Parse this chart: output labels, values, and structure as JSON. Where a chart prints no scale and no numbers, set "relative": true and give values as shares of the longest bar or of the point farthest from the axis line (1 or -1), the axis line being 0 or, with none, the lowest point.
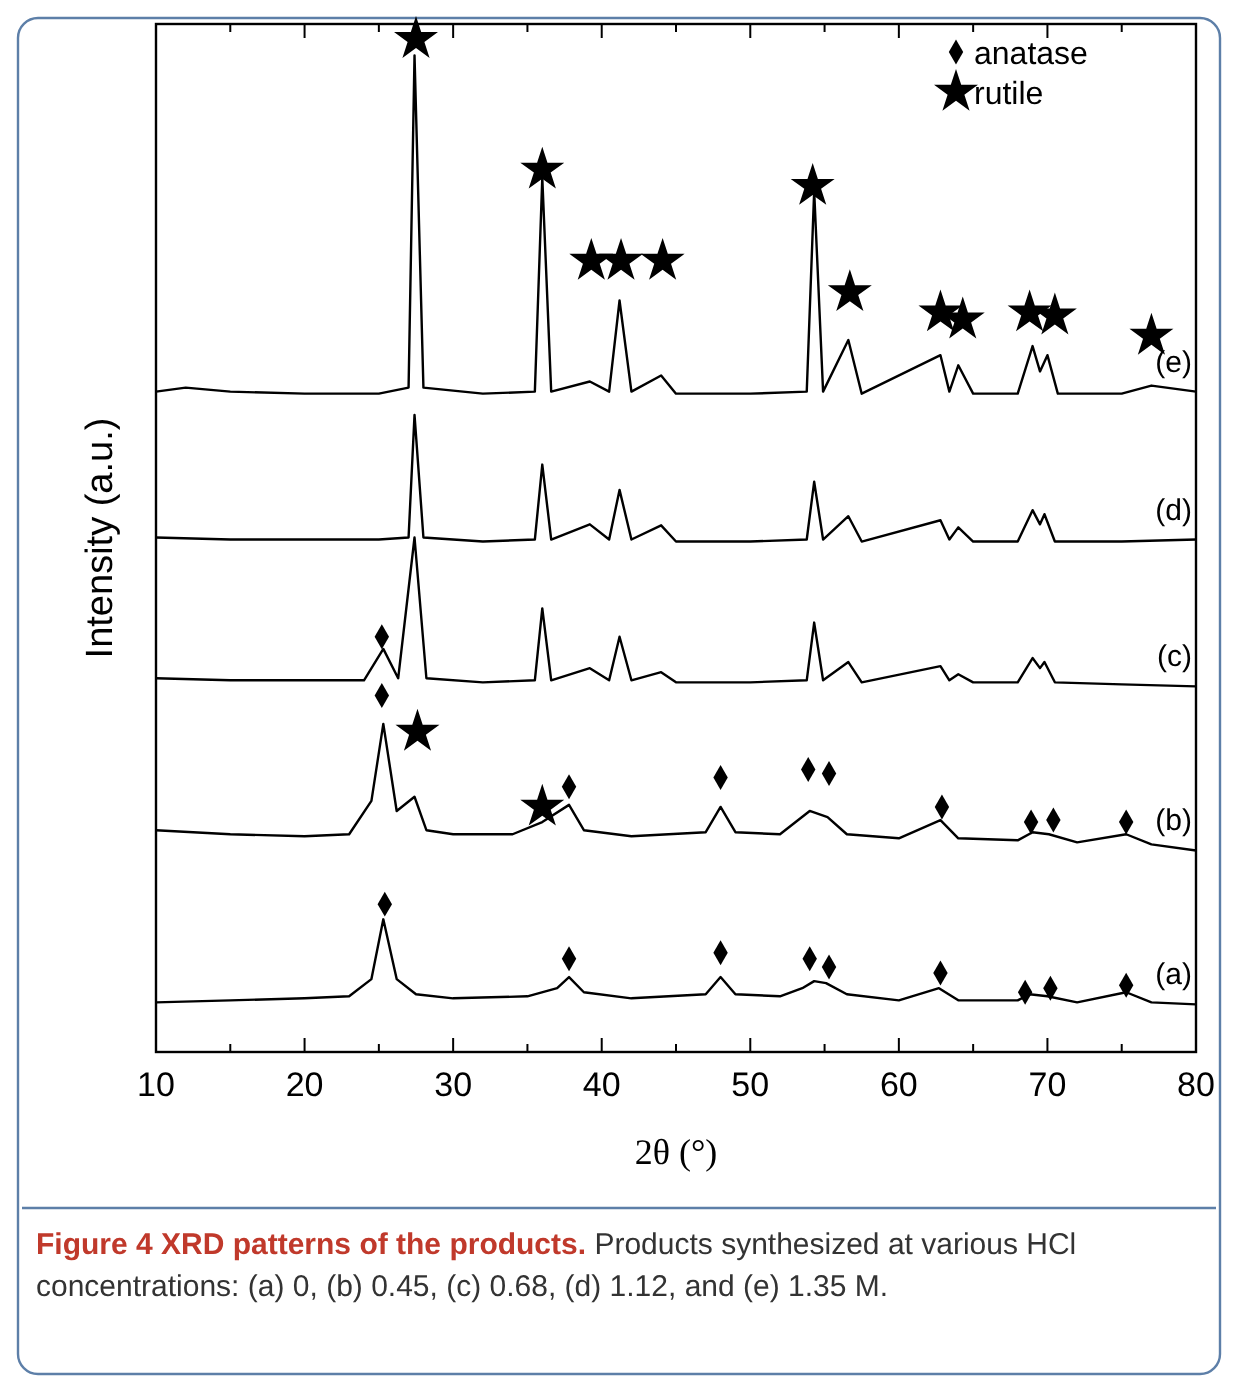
{
  "chart_data": {
    "type": "line",
    "relative": true,
    "title": "Figure 4 XRD patterns of the products.",
    "subtitle": "Products synthesized at various HCl concentrations: (a) 0, (b) 0.45, (c) 0.68, (d) 1.12, and (e) 1.35 M.",
    "xlabel": "2θ (°)",
    "ylabel": "Intensity (a.u.)",
    "xlim": [
      10,
      80
    ],
    "xticks": [
      10,
      {
        "value": 15,
        "label": null
      },
      20,
      {
        "value": 25,
        "label": null
      },
      30,
      {
        "value": 35,
        "label": null
      },
      40,
      {
        "value": 45,
        "label": null
      },
      50,
      {
        "value": 55,
        "label": null
      },
      60,
      {
        "value": 65,
        "label": null
      },
      70,
      {
        "value": 75,
        "label": null
      },
      80
    ],
    "legend": "top right",
    "grid": false,
    "series": [
      {
        "name": "(a)",
        "color": "#000000",
        "x": [
          10,
          15,
          20,
          23,
          24.5,
          25.3,
          26.2,
          27.5,
          30,
          35,
          37,
          37.8,
          38.8,
          42,
          47,
          48,
          49,
          52,
          53.5,
          54.3,
          55.1,
          56.5,
          60,
          62.7,
          64,
          68,
          68.8,
          70,
          72,
          75.3,
          77,
          80
        ],
        "values": [
          0.049,
          0.051,
          0.053,
          0.055,
          0.072,
          0.131,
          0.072,
          0.057,
          0.053,
          0.055,
          0.063,
          0.074,
          0.059,
          0.053,
          0.057,
          0.074,
          0.057,
          0.055,
          0.063,
          0.07,
          0.068,
          0.057,
          0.051,
          0.063,
          0.051,
          0.051,
          0.057,
          0.055,
          0.049,
          0.059,
          0.049,
          0.047
        ]
      },
      {
        "name": "(b)",
        "color": "#000000",
        "x": [
          10,
          15,
          20,
          23,
          24.5,
          25.3,
          26.2,
          27.4,
          28.2,
          30,
          34,
          36,
          37.8,
          38.8,
          42,
          47,
          48,
          49,
          52,
          54,
          55.2,
          56.5,
          60,
          62.8,
          64,
          68,
          69,
          70.1,
          72,
          75.3,
          77,
          80
        ],
        "values": [
          0.219,
          0.215,
          0.213,
          0.215,
          0.248,
          0.324,
          0.238,
          0.252,
          0.219,
          0.215,
          0.215,
          0.227,
          0.244,
          0.219,
          0.213,
          0.217,
          0.242,
          0.217,
          0.215,
          0.238,
          0.232,
          0.215,
          0.211,
          0.229,
          0.211,
          0.209,
          0.217,
          0.215,
          0.207,
          0.215,
          0.205,
          0.199
        ]
      },
      {
        "name": "(c)",
        "color": "#000000",
        "x": [
          10,
          15,
          20,
          24,
          25.3,
          26.3,
          27.4,
          28.2,
          32,
          35.5,
          36,
          36.6,
          39.2,
          40.5,
          41.2,
          42,
          44,
          45,
          50,
          53.8,
          54.3,
          54.9,
          56.6,
          57.5,
          62.8,
          63.4,
          64,
          65,
          68,
          69,
          69.5,
          69.8,
          70.5,
          75,
          80
        ],
        "values": [
          0.369,
          0.367,
          0.367,
          0.367,
          0.398,
          0.369,
          0.508,
          0.369,
          0.365,
          0.367,
          0.438,
          0.367,
          0.379,
          0.367,
          0.41,
          0.367,
          0.375,
          0.365,
          0.365,
          0.367,
          0.424,
          0.367,
          0.385,
          0.365,
          0.381,
          0.367,
          0.373,
          0.365,
          0.365,
          0.389,
          0.379,
          0.385,
          0.365,
          0.363,
          0.361
        ]
      },
      {
        "name": "(d)",
        "color": "#000000",
        "x": [
          10,
          15,
          20,
          25,
          27,
          27.4,
          28,
          32,
          35.5,
          36,
          36.6,
          39.2,
          40.5,
          41.2,
          42,
          44,
          45,
          50,
          53.8,
          54.3,
          54.9,
          56.6,
          57.5,
          62.8,
          63.4,
          64,
          65,
          68,
          69,
          69.5,
          69.8,
          70.5,
          75,
          80
        ],
        "values": [
          0.508,
          0.506,
          0.506,
          0.506,
          0.508,
          0.629,
          0.508,
          0.504,
          0.506,
          0.58,
          0.506,
          0.521,
          0.506,
          0.555,
          0.506,
          0.52,
          0.504,
          0.504,
          0.506,
          0.563,
          0.506,
          0.529,
          0.504,
          0.525,
          0.506,
          0.518,
          0.504,
          0.504,
          0.535,
          0.521,
          0.531,
          0.504,
          0.504,
          0.506
        ]
      },
      {
        "name": "(e)",
        "color": "#000000",
        "x": [
          10,
          12,
          15,
          20,
          25,
          27,
          27.4,
          28,
          32,
          35.5,
          36,
          36.6,
          39.2,
          40.5,
          41.2,
          42,
          44,
          45,
          50,
          53.8,
          54.3,
          54.9,
          56.6,
          57.5,
          62.8,
          63.4,
          64,
          65,
          68,
          69,
          69.5,
          70,
          70.7,
          75,
          77,
          80
        ],
        "values": [
          0.652,
          0.656,
          0.652,
          0.65,
          0.65,
          0.656,
          0.984,
          0.656,
          0.65,
          0.652,
          0.863,
          0.652,
          0.662,
          0.652,
          0.742,
          0.652,
          0.668,
          0.65,
          0.65,
          0.652,
          0.85,
          0.652,
          0.703,
          0.65,
          0.688,
          0.652,
          0.678,
          0.65,
          0.65,
          0.697,
          0.672,
          0.688,
          0.65,
          0.65,
          0.658,
          0.652
        ]
      },
      {
        "name": "anatase",
        "type": "scatter",
        "marker": "diamond",
        "color": "#000000",
        "x": [
          25.4,
          37.8,
          48,
          54,
          55.3,
          62.8,
          68.5,
          70.2,
          75.3,
          25.2,
          37.8,
          48,
          53.9,
          55.3,
          62.9,
          68.9,
          70.4,
          75.3,
          25.2
        ],
        "values": [
          0.146,
          0.092,
          0.098,
          0.092,
          0.084,
          0.078,
          0.059,
          0.063,
          0.066,
          0.352,
          0.262,
          0.271,
          0.279,
          0.275,
          0.242,
          0.227,
          0.229,
          0.227,
          0.41
        ]
      },
      {
        "name": "rutile",
        "type": "scatter",
        "marker": "star",
        "color": "#000000",
        "x": [
          27.5,
          36,
          39.3,
          41.3,
          44.1,
          54.2,
          56.7,
          62.8,
          64.3,
          68.8,
          70.5,
          77,
          27.6,
          36
        ],
        "values": [
          1.0,
          0.871,
          0.781,
          0.781,
          0.781,
          0.855,
          0.75,
          0.73,
          0.723,
          0.73,
          0.727,
          0.707,
          0.316,
          0.242
        ]
      }
    ]
  }
}
